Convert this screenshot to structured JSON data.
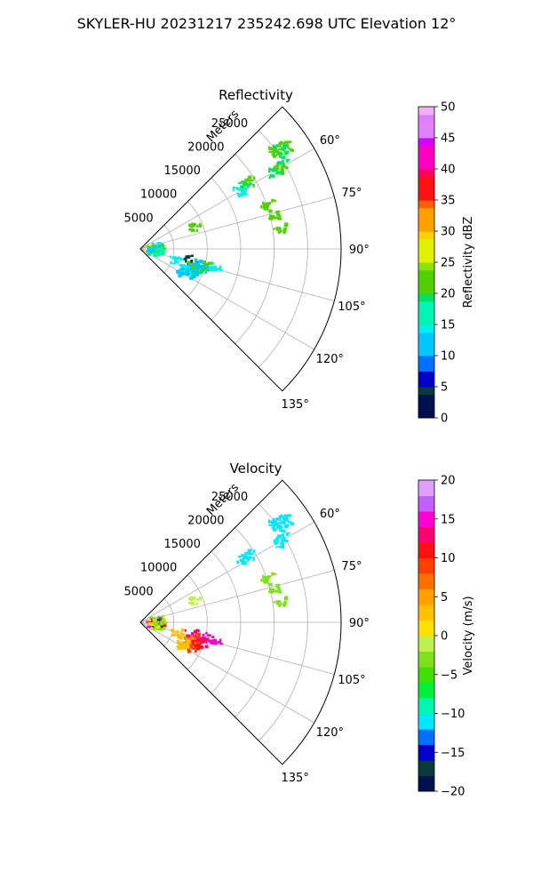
{
  "figure": {
    "suptitle": "SKYLER-HU  20231217  235242.698 UTC Elevation 12°"
  },
  "chart_data": [
    {
      "type": "polar-sector",
      "title": "Reflectivity",
      "radial_label": "Meters",
      "theta_range_deg": [
        45,
        135
      ],
      "r_range": [
        0,
        30000
      ],
      "grid": true,
      "r_ticks": [
        5000,
        10000,
        15000,
        20000,
        25000
      ],
      "r_tick_labels": [
        "5000",
        "10000",
        "15000",
        "20000",
        "25000"
      ],
      "theta_ticks": [
        60,
        75,
        90,
        105,
        120,
        135
      ],
      "theta_tick_labels": [
        "60°",
        "75°",
        "90°",
        "105°",
        "120°",
        "135°"
      ],
      "colorbar": {
        "label": "Reflectivity dBZ",
        "min": 0,
        "max": 50,
        "ticks": [
          0,
          5,
          10,
          15,
          20,
          25,
          30,
          35,
          40,
          45,
          50
        ],
        "tick_labels": [
          "0",
          "5",
          "10",
          "15",
          "20",
          "25",
          "30",
          "35",
          "40",
          "45",
          "50"
        ]
      },
      "echoes": [
        {
          "az": 54,
          "r": 26500,
          "value": 20
        },
        {
          "az": 54,
          "r": 25500,
          "value": 18
        },
        {
          "az": 53,
          "r": 24500,
          "value": 22
        },
        {
          "az": 58,
          "r": 25000,
          "value": 19
        },
        {
          "az": 60,
          "r": 24000,
          "value": 20
        },
        {
          "az": 60,
          "r": 23000,
          "value": 18
        },
        {
          "az": 57,
          "r": 19000,
          "value": 21
        },
        {
          "az": 58,
          "r": 18000,
          "value": 19
        },
        {
          "az": 59,
          "r": 17000,
          "value": 13
        },
        {
          "az": 70,
          "r": 20000,
          "value": 20
        },
        {
          "az": 75,
          "r": 20500,
          "value": 22
        },
        {
          "az": 81,
          "r": 21000,
          "value": 20
        },
        {
          "az": 67,
          "r": 8500,
          "value": 21
        },
        {
          "az": 80,
          "r": 2600,
          "value": 14
        },
        {
          "az": 83,
          "r": 2200,
          "value": 18
        },
        {
          "az": 86,
          "r": 2000,
          "value": 22
        },
        {
          "az": 88,
          "r": 1600,
          "value": 24
        },
        {
          "az": 90,
          "r": 2400,
          "value": 20
        },
        {
          "az": 92,
          "r": 2000,
          "value": 17
        },
        {
          "az": 94,
          "r": 1700,
          "value": 12
        },
        {
          "az": 97,
          "r": 2800,
          "value": 15
        },
        {
          "az": 101,
          "r": 7500,
          "value": 4
        },
        {
          "az": 103,
          "r": 8800,
          "value": 12
        },
        {
          "az": 104,
          "r": 10000,
          "value": 20
        },
        {
          "az": 106,
          "r": 8000,
          "value": 22
        },
        {
          "az": 107,
          "r": 9500,
          "value": 12
        },
        {
          "az": 110,
          "r": 8200,
          "value": 10
        },
        {
          "az": 111,
          "r": 9000,
          "value": 18
        },
        {
          "az": 113,
          "r": 7300,
          "value": 13
        },
        {
          "az": 115,
          "r": 8400,
          "value": 11
        },
        {
          "az": 117,
          "r": 7000,
          "value": 12
        },
        {
          "az": 103,
          "r": 11200,
          "value": 13
        },
        {
          "az": 107,
          "r": 5500,
          "value": 14
        }
      ]
    },
    {
      "type": "polar-sector",
      "title": "Velocity",
      "radial_label": "Meters",
      "theta_range_deg": [
        45,
        135
      ],
      "r_range": [
        0,
        30000
      ],
      "grid": true,
      "r_ticks": [
        5000,
        10000,
        15000,
        20000,
        25000
      ],
      "r_tick_labels": [
        "5000",
        "10000",
        "15000",
        "20000",
        "25000"
      ],
      "theta_ticks": [
        60,
        75,
        90,
        105,
        120,
        135
      ],
      "theta_tick_labels": [
        "60°",
        "75°",
        "90°",
        "105°",
        "120°",
        "135°"
      ],
      "colorbar": {
        "label": "Velocity (m/s)",
        "min": -20,
        "max": 20,
        "ticks": [
          -20,
          -15,
          -10,
          -5,
          0,
          5,
          10,
          15,
          20
        ],
        "tick_labels": [
          "−20",
          "−15",
          "−10",
          "−5",
          "0",
          "5",
          "10",
          "15",
          "20"
        ]
      },
      "echoes": [
        {
          "az": 54,
          "r": 26500,
          "value": -12
        },
        {
          "az": 54,
          "r": 25500,
          "value": -11
        },
        {
          "az": 53,
          "r": 24500,
          "value": -12
        },
        {
          "az": 58,
          "r": 25000,
          "value": -12
        },
        {
          "az": 60,
          "r": 24000,
          "value": -11
        },
        {
          "az": 57,
          "r": 19000,
          "value": -11
        },
        {
          "az": 58,
          "r": 18000,
          "value": -12
        },
        {
          "az": 70,
          "r": 20000,
          "value": -3
        },
        {
          "az": 75,
          "r": 20500,
          "value": -4
        },
        {
          "az": 81,
          "r": 21000,
          "value": -3
        },
        {
          "az": 67,
          "r": 8500,
          "value": -2
        },
        {
          "az": 78,
          "r": 2600,
          "value": 2
        },
        {
          "az": 81,
          "r": 2300,
          "value": -3
        },
        {
          "az": 84,
          "r": 2100,
          "value": -9
        },
        {
          "az": 87,
          "r": 1800,
          "value": 14
        },
        {
          "az": 89,
          "r": 2500,
          "value": 10
        },
        {
          "az": 91,
          "r": 2100,
          "value": -17
        },
        {
          "az": 93,
          "r": 1800,
          "value": 1
        },
        {
          "az": 96,
          "r": 2600,
          "value": -4
        },
        {
          "az": 102,
          "r": 7600,
          "value": 13
        },
        {
          "az": 103,
          "r": 9300,
          "value": 15
        },
        {
          "az": 103,
          "r": 11200,
          "value": 15
        },
        {
          "az": 105,
          "r": 8200,
          "value": 9
        },
        {
          "az": 108,
          "r": 9300,
          "value": 12
        },
        {
          "az": 109,
          "r": 7600,
          "value": 7
        },
        {
          "az": 111,
          "r": 8800,
          "value": 10
        },
        {
          "az": 113,
          "r": 7200,
          "value": 4
        },
        {
          "az": 115,
          "r": 8300,
          "value": 9
        },
        {
          "az": 117,
          "r": 6900,
          "value": 3
        },
        {
          "az": 106,
          "r": 5500,
          "value": 2
        }
      ]
    }
  ]
}
